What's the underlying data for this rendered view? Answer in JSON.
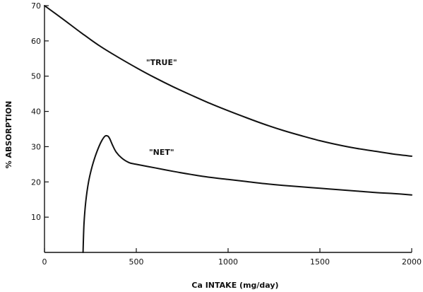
{
  "chart_data": {
    "type": "line",
    "title": "",
    "xlabel": "Ca INTAKE (mg/day)",
    "ylabel": "% ABSORPTION",
    "xlim": [
      0,
      2000
    ],
    "ylim": [
      0,
      70
    ],
    "x_ticks": [
      0,
      500,
      1000,
      1500,
      2000
    ],
    "x_tick_labels": [
      "0",
      "500",
      "1000",
      "1500",
      "2000"
    ],
    "y_ticks": [
      10,
      20,
      30,
      40,
      50,
      60,
      70
    ],
    "y_tick_labels": [
      "10",
      "20",
      "30",
      "40",
      "50",
      "60",
      "70"
    ],
    "grid": false,
    "legend": "none",
    "series": [
      {
        "name": "\"TRUE\"",
        "x": [
          0,
          100,
          200,
          300,
          400,
          500,
          600,
          700,
          800,
          900,
          1000,
          1100,
          1200,
          1300,
          1400,
          1500,
          1600,
          1700,
          1800,
          1900,
          2000
        ],
        "y": [
          70,
          66.2,
          62.3,
          58.6,
          55.4,
          52.4,
          49.6,
          47.0,
          44.6,
          42.3,
          40.2,
          38.2,
          36.3,
          34.6,
          33.1,
          31.7,
          30.5,
          29.5,
          28.7,
          27.9,
          27.3
        ]
      },
      {
        "name": "\"NET\"",
        "x": [
          210,
          215,
          225,
          240,
          260,
          285,
          310,
          330,
          345,
          355,
          370,
          390,
          420,
          460,
          500,
          600,
          700,
          800,
          900,
          1000,
          1100,
          1200,
          1300,
          1400,
          1500,
          1600,
          1700,
          1800,
          1900,
          2000
        ],
        "y": [
          0,
          8,
          14.5,
          20,
          24.5,
          28.5,
          31.5,
          33.0,
          33.0,
          32.3,
          30.5,
          28.5,
          26.8,
          25.5,
          25.0,
          24.0,
          23.0,
          22.1,
          21.3,
          20.7,
          20.1,
          19.5,
          19.0,
          18.6,
          18.2,
          17.8,
          17.4,
          17.0,
          16.7,
          16.3
        ]
      }
    ],
    "annotations": [
      {
        "text": "\"TRUE\"",
        "x": 580,
        "y": 54
      },
      {
        "text": "\"NET\"",
        "x": 580,
        "y": 28.5
      }
    ]
  }
}
